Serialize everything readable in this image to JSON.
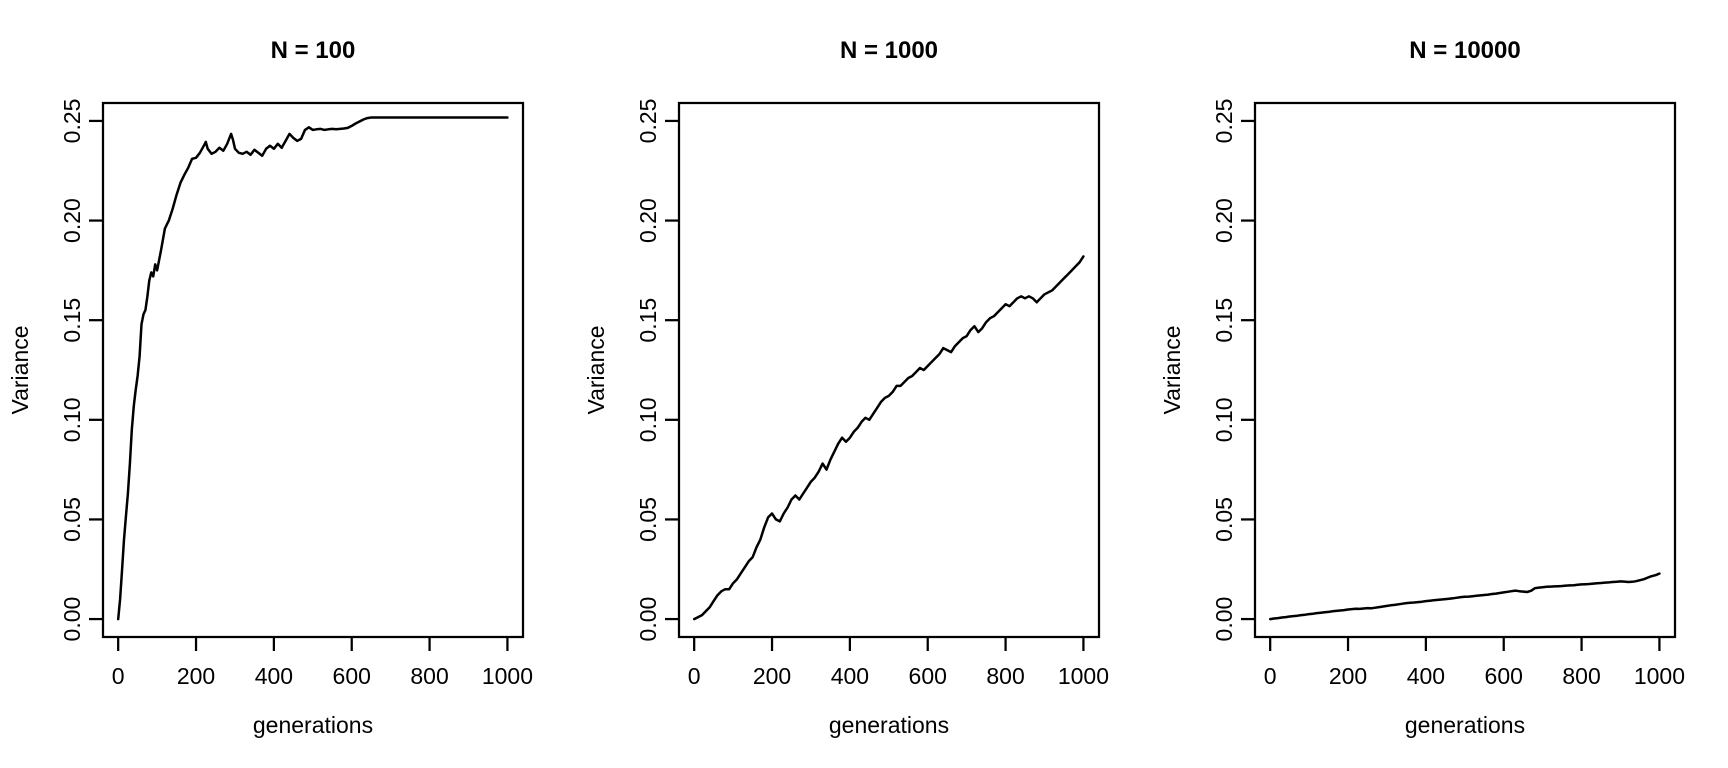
{
  "figure": {
    "background_color": "#ffffff",
    "foreground_color": "#000000"
  },
  "chart_data": [
    {
      "type": "line",
      "title": "N = 100",
      "xlabel": "generations",
      "ylabel": "Variance",
      "xlim": [
        -39,
        1040
      ],
      "ylim": [
        -0.009,
        0.259
      ],
      "xticks": [
        0,
        200,
        400,
        600,
        800,
        1000
      ],
      "xtick_labels": [
        "0",
        "200",
        "400",
        "600",
        "800",
        "1000"
      ],
      "yticks": [
        0,
        0.05,
        0.1,
        0.15,
        0.2,
        0.25
      ],
      "ytick_labels": [
        "0.00",
        "0.05",
        "0.10",
        "0.15",
        "0.20",
        "0.25"
      ],
      "grid": false,
      "legend": false,
      "line_color": "#000000",
      "series": [
        {
          "name": "variance",
          "x": [
            0,
            5,
            10,
            15,
            20,
            25,
            30,
            35,
            40,
            45,
            50,
            55,
            60,
            65,
            70,
            75,
            80,
            85,
            90,
            95,
            100,
            110,
            120,
            130,
            140,
            150,
            160,
            170,
            180,
            190,
            200,
            210,
            220,
            225,
            230,
            240,
            250,
            260,
            270,
            280,
            290,
            295,
            300,
            310,
            320,
            330,
            340,
            350,
            360,
            370,
            380,
            390,
            400,
            410,
            420,
            430,
            440,
            450,
            460,
            470,
            480,
            490,
            500,
            510,
            520,
            530,
            540,
            550,
            560,
            570,
            580,
            590,
            600,
            610,
            620,
            630,
            640,
            650,
            675,
            700,
            750,
            800,
            850,
            900,
            950,
            1000
          ],
          "y": [
            0,
            0.01,
            0.025,
            0.04,
            0.052,
            0.063,
            0.078,
            0.095,
            0.107,
            0.115,
            0.122,
            0.132,
            0.148,
            0.153,
            0.155,
            0.162,
            0.17,
            0.174,
            0.172,
            0.178,
            0.175,
            0.185,
            0.196,
            0.2,
            0.206,
            0.213,
            0.219,
            0.223,
            0.2265,
            0.231,
            0.2315,
            0.234,
            0.2375,
            0.2395,
            0.236,
            0.2335,
            0.2345,
            0.2365,
            0.235,
            0.2385,
            0.2435,
            0.2405,
            0.236,
            0.234,
            0.2335,
            0.2345,
            0.233,
            0.2355,
            0.234,
            0.2325,
            0.236,
            0.2375,
            0.236,
            0.2385,
            0.2365,
            0.24,
            0.2435,
            0.2415,
            0.24,
            0.241,
            0.2455,
            0.2468,
            0.2455,
            0.2458,
            0.246,
            0.2455,
            0.2458,
            0.246,
            0.2458,
            0.246,
            0.2462,
            0.2465,
            0.2475,
            0.2487,
            0.2497,
            0.2507,
            0.2514,
            0.2517,
            0.2517,
            0.2517,
            0.2517,
            0.2517,
            0.2517,
            0.2517,
            0.2517,
            0.2517
          ]
        }
      ]
    },
    {
      "type": "line",
      "title": "N = 1000",
      "xlabel": "generations",
      "ylabel": "Variance",
      "xlim": [
        -39,
        1040
      ],
      "ylim": [
        -0.009,
        0.259
      ],
      "xticks": [
        0,
        200,
        400,
        600,
        800,
        1000
      ],
      "xtick_labels": [
        "0",
        "200",
        "400",
        "600",
        "800",
        "1000"
      ],
      "yticks": [
        0,
        0.05,
        0.1,
        0.15,
        0.2,
        0.25
      ],
      "ytick_labels": [
        "0.00",
        "0.05",
        "0.10",
        "0.15",
        "0.20",
        "0.25"
      ],
      "grid": false,
      "legend": false,
      "line_color": "#000000",
      "series": [
        {
          "name": "variance",
          "x": [
            0,
            10,
            20,
            30,
            40,
            50,
            60,
            70,
            80,
            90,
            100,
            110,
            120,
            130,
            140,
            150,
            160,
            170,
            180,
            190,
            200,
            210,
            220,
            230,
            240,
            250,
            260,
            270,
            280,
            290,
            300,
            310,
            320,
            330,
            340,
            350,
            360,
            370,
            380,
            390,
            400,
            410,
            420,
            430,
            440,
            450,
            460,
            470,
            480,
            490,
            500,
            510,
            520,
            530,
            540,
            550,
            560,
            570,
            580,
            590,
            600,
            610,
            620,
            630,
            640,
            650,
            660,
            670,
            680,
            690,
            700,
            710,
            720,
            730,
            740,
            750,
            760,
            770,
            780,
            790,
            800,
            810,
            820,
            830,
            840,
            850,
            860,
            870,
            880,
            890,
            900,
            910,
            920,
            930,
            940,
            950,
            960,
            970,
            980,
            990,
            1000
          ],
          "y": [
            0,
            0.001,
            0.002,
            0.004,
            0.006,
            0.009,
            0.012,
            0.014,
            0.015,
            0.015,
            0.018,
            0.02,
            0.023,
            0.026,
            0.029,
            0.031,
            0.036,
            0.04,
            0.046,
            0.051,
            0.053,
            0.05,
            0.049,
            0.053,
            0.056,
            0.06,
            0.062,
            0.06,
            0.063,
            0.066,
            0.069,
            0.071,
            0.074,
            0.078,
            0.075,
            0.08,
            0.084,
            0.088,
            0.091,
            0.089,
            0.091,
            0.094,
            0.096,
            0.099,
            0.101,
            0.1,
            0.103,
            0.106,
            0.109,
            0.111,
            0.112,
            0.114,
            0.117,
            0.117,
            0.119,
            0.121,
            0.122,
            0.124,
            0.126,
            0.125,
            0.127,
            0.129,
            0.131,
            0.133,
            0.136,
            0.135,
            0.134,
            0.137,
            0.139,
            0.141,
            0.142,
            0.145,
            0.147,
            0.144,
            0.146,
            0.149,
            0.151,
            0.152,
            0.154,
            0.156,
            0.158,
            0.157,
            0.159,
            0.161,
            0.162,
            0.161,
            0.162,
            0.161,
            0.159,
            0.161,
            0.163,
            0.164,
            0.165,
            0.167,
            0.169,
            0.171,
            0.173,
            0.175,
            0.177,
            0.179,
            0.182
          ]
        }
      ]
    },
    {
      "type": "line",
      "title": "N = 10000",
      "xlabel": "generations",
      "ylabel": "Variance",
      "xlim": [
        -39,
        1040
      ],
      "ylim": [
        -0.009,
        0.259
      ],
      "xticks": [
        0,
        200,
        400,
        600,
        800,
        1000
      ],
      "xtick_labels": [
        "0",
        "200",
        "400",
        "600",
        "800",
        "1000"
      ],
      "yticks": [
        0,
        0.05,
        0.1,
        0.15,
        0.2,
        0.25
      ],
      "ytick_labels": [
        "0.00",
        "0.05",
        "0.10",
        "0.15",
        "0.20",
        "0.25"
      ],
      "grid": false,
      "legend": false,
      "line_color": "#000000",
      "series": [
        {
          "name": "variance",
          "x": [
            0,
            10,
            20,
            30,
            40,
            50,
            60,
            70,
            80,
            90,
            100,
            110,
            120,
            130,
            140,
            150,
            160,
            170,
            180,
            190,
            200,
            210,
            220,
            230,
            240,
            250,
            260,
            270,
            280,
            290,
            300,
            310,
            320,
            330,
            340,
            350,
            360,
            370,
            380,
            390,
            400,
            410,
            420,
            430,
            440,
            450,
            460,
            470,
            480,
            490,
            500,
            510,
            520,
            530,
            540,
            550,
            560,
            570,
            580,
            590,
            600,
            610,
            620,
            630,
            640,
            650,
            660,
            670,
            680,
            690,
            700,
            710,
            720,
            730,
            740,
            750,
            760,
            770,
            780,
            790,
            800,
            810,
            820,
            830,
            840,
            850,
            860,
            870,
            880,
            890,
            900,
            910,
            920,
            930,
            940,
            950,
            960,
            970,
            980,
            990,
            1000
          ],
          "y": [
            0,
            0.0003,
            0.0005,
            0.0008,
            0.001,
            0.0013,
            0.0015,
            0.0017,
            0.002,
            0.0022,
            0.0025,
            0.0027,
            0.003,
            0.0032,
            0.0034,
            0.0036,
            0.0039,
            0.0041,
            0.0043,
            0.0045,
            0.0048,
            0.005,
            0.0052,
            0.0051,
            0.0053,
            0.0055,
            0.0054,
            0.0057,
            0.006,
            0.0063,
            0.0066,
            0.0069,
            0.0071,
            0.0074,
            0.0077,
            0.008,
            0.0082,
            0.0083,
            0.0085,
            0.0087,
            0.009,
            0.0092,
            0.0094,
            0.0096,
            0.0098,
            0.01,
            0.0102,
            0.0104,
            0.0107,
            0.011,
            0.0112,
            0.0113,
            0.0115,
            0.0117,
            0.0119,
            0.0121,
            0.0123,
            0.0126,
            0.0128,
            0.0131,
            0.0134,
            0.0137,
            0.014,
            0.0143,
            0.014,
            0.0138,
            0.0136,
            0.0142,
            0.0155,
            0.0158,
            0.016,
            0.0162,
            0.0163,
            0.0164,
            0.0165,
            0.0166,
            0.0168,
            0.0169,
            0.017,
            0.0172,
            0.0174,
            0.0175,
            0.0176,
            0.0178,
            0.018,
            0.0181,
            0.0183,
            0.0184,
            0.0186,
            0.0187,
            0.0189,
            0.0188,
            0.0186,
            0.0187,
            0.019,
            0.0195,
            0.02,
            0.0208,
            0.0215,
            0.022,
            0.0228
          ]
        }
      ]
    }
  ]
}
